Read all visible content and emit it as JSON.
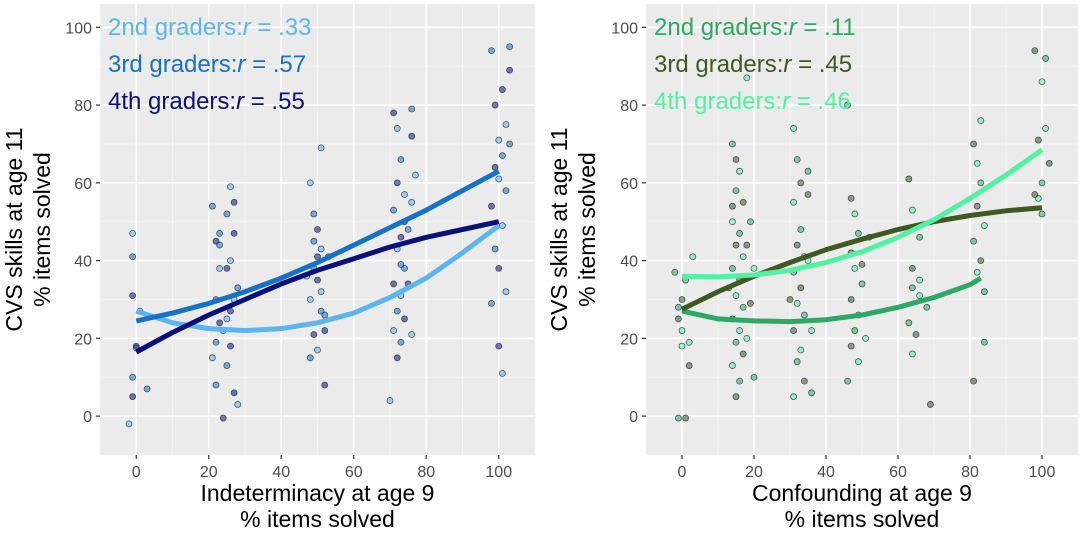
{
  "chart_data": [
    {
      "type": "scatter",
      "xlabel": "Indeterminacy at age 9",
      "xlabel2": "% items solved",
      "ylabel": "CVS skills at age 11",
      "ylabel2": "% items solved",
      "xlim": [
        -10,
        110
      ],
      "ylim": [
        -10,
        106
      ],
      "xticks": [
        0,
        20,
        40,
        60,
        80,
        100
      ],
      "yticks": [
        0,
        20,
        40,
        60,
        80,
        100
      ],
      "grid": true,
      "legend_position": "top-left",
      "series": [
        {
          "name": "2nd graders",
          "r_prefix": "2nd graders:",
          "r_symbol": "r",
          "r_value": " = .33",
          "color": "#5DB5F0",
          "curve": [
            [
              0,
              27
            ],
            [
              10,
              24
            ],
            [
              20,
              22.5
            ],
            [
              30,
              22
            ],
            [
              40,
              22.5
            ],
            [
              50,
              24
            ],
            [
              60,
              26.5
            ],
            [
              70,
              30.5
            ],
            [
              80,
              35.5
            ],
            [
              90,
              42
            ],
            [
              100,
              49
            ]
          ],
          "x_range": [
            0,
            100
          ]
        },
        {
          "name": "3rd graders",
          "r_prefix": "3rd graders:",
          "r_symbol": "r",
          "r_value": " = .57",
          "color": "#1672C8",
          "curve": [
            [
              0,
              24.5
            ],
            [
              10,
              26.5
            ],
            [
              20,
              29
            ],
            [
              30,
              32
            ],
            [
              40,
              35.5
            ],
            [
              50,
              39.5
            ],
            [
              60,
              44
            ],
            [
              70,
              48.5
            ],
            [
              80,
              53
            ],
            [
              90,
              58
            ],
            [
              100,
              63
            ]
          ],
          "x_range": [
            0,
            100
          ]
        },
        {
          "name": "4th graders",
          "r_prefix": "4th graders:",
          "r_symbol": "r",
          "r_value": " = .55",
          "color": "#0A0F7A",
          "curve": [
            [
              0,
              16.5
            ],
            [
              10,
              21.5
            ],
            [
              20,
              26
            ],
            [
              30,
              30
            ],
            [
              40,
              34
            ],
            [
              50,
              37.5
            ],
            [
              60,
              40.5
            ],
            [
              70,
              43.5
            ],
            [
              80,
              46
            ],
            [
              90,
              48
            ],
            [
              100,
              50
            ]
          ],
          "x_range": [
            0,
            100
          ]
        }
      ],
      "points": [
        [
          -1,
          47
        ],
        [
          -1,
          41
        ],
        [
          -1,
          31
        ],
        [
          0,
          17.5
        ],
        [
          -1,
          10
        ],
        [
          -1,
          5
        ],
        [
          -2,
          -2
        ],
        [
          3,
          7
        ],
        [
          0,
          18
        ],
        [
          1,
          27
        ],
        [
          21,
          54
        ],
        [
          22,
          45
        ],
        [
          23,
          38
        ],
        [
          22,
          30
        ],
        [
          23,
          24
        ],
        [
          21,
          15
        ],
        [
          22,
          8
        ],
        [
          24,
          -0.5
        ],
        [
          26,
          59
        ],
        [
          25,
          52
        ],
        [
          27,
          47
        ],
        [
          26,
          40
        ],
        [
          28,
          33
        ],
        [
          26,
          27
        ],
        [
          24,
          22
        ],
        [
          25,
          13
        ],
        [
          27,
          6
        ],
        [
          28,
          3
        ],
        [
          23,
          44
        ],
        [
          25,
          38
        ],
        [
          27,
          30
        ],
        [
          22,
          19
        ],
        [
          26,
          18
        ],
        [
          25,
          25
        ],
        [
          23,
          47
        ],
        [
          27,
          55
        ],
        [
          48,
          60
        ],
        [
          49,
          52
        ],
        [
          50,
          48
        ],
        [
          51,
          43
        ],
        [
          49,
          38
        ],
        [
          50,
          35
        ],
        [
          48,
          30
        ],
        [
          51,
          27
        ],
        [
          52,
          22
        ],
        [
          50,
          17
        ],
        [
          48,
          15
        ],
        [
          52,
          8
        ],
        [
          51,
          69
        ],
        [
          49,
          45
        ],
        [
          50,
          41
        ],
        [
          51,
          32
        ],
        [
          52,
          26
        ],
        [
          49,
          21
        ],
        [
          47,
          36
        ],
        [
          53,
          41
        ],
        [
          71,
          78
        ],
        [
          72,
          74
        ],
        [
          73,
          66
        ],
        [
          72,
          60
        ],
        [
          74,
          57
        ],
        [
          71,
          53
        ],
        [
          73,
          46
        ],
        [
          72,
          43
        ],
        [
          74,
          38
        ],
        [
          71,
          34
        ],
        [
          73,
          31
        ],
        [
          72,
          27
        ],
        [
          74,
          25
        ],
        [
          71,
          22
        ],
        [
          73,
          19
        ],
        [
          72,
          15
        ],
        [
          70,
          4
        ],
        [
          76,
          79
        ],
        [
          76,
          72
        ],
        [
          77,
          62
        ],
        [
          75,
          48
        ],
        [
          74,
          50
        ],
        [
          76,
          55
        ],
        [
          73,
          39
        ],
        [
          75,
          34
        ],
        [
          76,
          21
        ],
        [
          98,
          94
        ],
        [
          99,
          80
        ],
        [
          100,
          71
        ],
        [
          101,
          67
        ],
        [
          99,
          64
        ],
        [
          100,
          61
        ],
        [
          102,
          58
        ],
        [
          98,
          54
        ],
        [
          101,
          49
        ],
        [
          99,
          43
        ],
        [
          100,
          38
        ],
        [
          102,
          32
        ],
        [
          98,
          29
        ],
        [
          100,
          18
        ],
        [
          101,
          11
        ],
        [
          103,
          95
        ],
        [
          103,
          89
        ],
        [
          102,
          75
        ],
        [
          103,
          70
        ],
        [
          101,
          84
        ]
      ]
    },
    {
      "type": "scatter",
      "xlabel": "Confounding at age 9",
      "xlabel2": "% items solved",
      "ylabel": "CVS skills at age 11",
      "ylabel2": "% items solved",
      "xlim": [
        -10,
        110
      ],
      "ylim": [
        -10,
        106
      ],
      "xticks": [
        0,
        20,
        40,
        60,
        80,
        100
      ],
      "yticks": [
        0,
        20,
        40,
        60,
        80,
        100
      ],
      "grid": true,
      "legend_position": "top-left",
      "series": [
        {
          "name": "2nd graders",
          "r_prefix": "2nd graders:",
          "r_symbol": "r",
          "r_value": " = .11",
          "color": "#2EA866",
          "curve": [
            [
              0,
              27
            ],
            [
              10,
              25
            ],
            [
              20,
              24.5
            ],
            [
              30,
              24.3
            ],
            [
              40,
              24.8
            ],
            [
              50,
              26
            ],
            [
              60,
              28
            ],
            [
              70,
              30.5
            ],
            [
              80,
              33.8
            ],
            [
              83,
              35.5
            ]
          ],
          "x_range": [
            0,
            83
          ]
        },
        {
          "name": "3rd graders",
          "r_prefix": "3rd graders:",
          "r_symbol": "r",
          "r_value": " = .45",
          "color": "#3E5A22",
          "curve": [
            [
              0,
              27.5
            ],
            [
              10,
              32
            ],
            [
              20,
              36
            ],
            [
              30,
              39.5
            ],
            [
              40,
              42.8
            ],
            [
              50,
              45.5
            ],
            [
              60,
              48
            ],
            [
              70,
              50
            ],
            [
              80,
              51.6
            ],
            [
              90,
              52.8
            ],
            [
              100,
              53.6
            ]
          ],
          "x_range": [
            0,
            100
          ]
        },
        {
          "name": "4th graders",
          "r_prefix": "4th graders:",
          "r_symbol": "r",
          "r_value": " = .46",
          "color": "#52F2A2",
          "curve": [
            [
              0,
              36
            ],
            [
              10,
              35.8
            ],
            [
              20,
              36.3
            ],
            [
              30,
              37.5
            ],
            [
              40,
              39.5
            ],
            [
              50,
              42.3
            ],
            [
              60,
              46
            ],
            [
              70,
              50.5
            ],
            [
              80,
              56
            ],
            [
              90,
              62
            ],
            [
              100,
              68.5
            ]
          ],
          "x_range": [
            0,
            100
          ]
        }
      ],
      "points": [
        [
          -1,
          28
        ],
        [
          -1,
          25
        ],
        [
          0,
          22
        ],
        [
          1,
          35
        ],
        [
          0,
          30
        ],
        [
          2,
          19
        ],
        [
          -1,
          -0.5
        ],
        [
          1,
          -0.5
        ],
        [
          3,
          41
        ],
        [
          -2,
          37
        ],
        [
          2,
          13
        ],
        [
          0,
          18
        ],
        [
          14,
          70
        ],
        [
          15,
          66
        ],
        [
          16,
          63
        ],
        [
          15,
          58
        ],
        [
          17,
          55
        ],
        [
          14,
          50
        ],
        [
          16,
          47
        ],
        [
          15,
          44
        ],
        [
          17,
          41
        ],
        [
          14,
          38
        ],
        [
          16,
          35
        ],
        [
          15,
          31
        ],
        [
          17,
          28
        ],
        [
          14,
          25
        ],
        [
          16,
          22
        ],
        [
          15,
          19
        ],
        [
          17,
          16
        ],
        [
          14,
          13
        ],
        [
          16,
          9
        ],
        [
          15,
          5
        ],
        [
          18,
          87
        ],
        [
          19,
          50
        ],
        [
          18,
          44
        ],
        [
          20,
          38
        ],
        [
          13,
          33
        ],
        [
          19,
          29
        ],
        [
          18,
          20
        ],
        [
          20,
          10
        ],
        [
          14,
          54
        ],
        [
          31,
          74
        ],
        [
          32,
          66
        ],
        [
          33,
          60
        ],
        [
          31,
          55
        ],
        [
          33,
          48
        ],
        [
          32,
          44
        ],
        [
          34,
          41
        ],
        [
          31,
          37
        ],
        [
          33,
          33
        ],
        [
          32,
          29
        ],
        [
          34,
          26
        ],
        [
          31,
          22
        ],
        [
          33,
          17
        ],
        [
          32,
          14
        ],
        [
          34,
          9
        ],
        [
          31,
          5
        ],
        [
          35,
          63
        ],
        [
          35,
          57
        ],
        [
          36,
          22
        ],
        [
          36,
          6
        ],
        [
          30,
          30
        ],
        [
          35,
          40
        ],
        [
          46,
          80
        ],
        [
          47,
          56
        ],
        [
          48,
          52
        ],
        [
          49,
          47
        ],
        [
          47,
          42
        ],
        [
          48,
          38
        ],
        [
          50,
          34
        ],
        [
          47,
          30
        ],
        [
          49,
          26
        ],
        [
          48,
          22
        ],
        [
          47,
          18
        ],
        [
          49,
          14
        ],
        [
          46,
          9
        ],
        [
          50,
          39
        ],
        [
          51,
          20
        ],
        [
          52,
          46
        ],
        [
          63,
          61
        ],
        [
          64,
          53
        ],
        [
          66,
          46
        ],
        [
          64,
          38
        ],
        [
          66,
          31
        ],
        [
          63,
          24
        ],
        [
          65,
          21
        ],
        [
          64,
          16
        ],
        [
          68,
          28
        ],
        [
          69,
          3
        ],
        [
          66,
          35
        ],
        [
          64,
          33
        ],
        [
          81,
          70
        ],
        [
          82,
          65
        ],
        [
          83,
          60
        ],
        [
          82,
          54
        ],
        [
          84,
          49
        ],
        [
          81,
          45
        ],
        [
          83,
          40
        ],
        [
          82,
          37
        ],
        [
          84,
          32
        ],
        [
          81,
          9
        ],
        [
          83,
          76
        ],
        [
          84,
          19
        ],
        [
          98,
          94
        ],
        [
          100,
          86
        ],
        [
          101,
          92
        ],
        [
          99,
          71
        ],
        [
          101,
          74
        ],
        [
          100,
          60
        ],
        [
          102,
          65
        ],
        [
          99,
          56
        ],
        [
          100,
          52
        ],
        [
          98,
          57
        ]
      ]
    }
  ]
}
